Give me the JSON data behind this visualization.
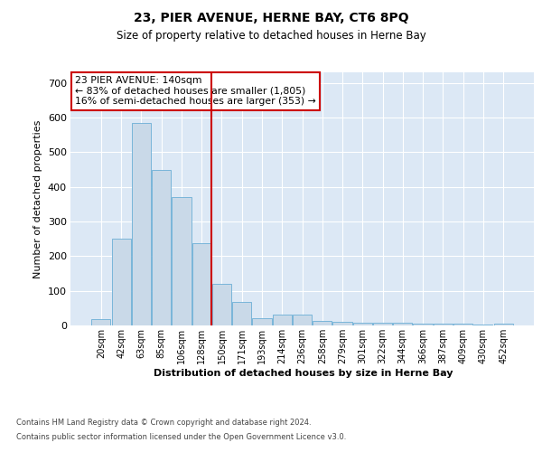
{
  "title": "23, PIER AVENUE, HERNE BAY, CT6 8PQ",
  "subtitle": "Size of property relative to detached houses in Herne Bay",
  "xlabel": "Distribution of detached houses by size in Herne Bay",
  "ylabel": "Number of detached properties",
  "footer_line1": "Contains HM Land Registry data © Crown copyright and database right 2024.",
  "footer_line2": "Contains public sector information licensed under the Open Government Licence v3.0.",
  "annotation_line1": "23 PIER AVENUE: 140sqm",
  "annotation_line2": "← 83% of detached houses are smaller (1,805)",
  "annotation_line3": "16% of semi-detached houses are larger (353) →",
  "bar_color": "#c9d9e8",
  "bar_edge_color": "#6baed6",
  "vline_color": "#cc0000",
  "annotation_box_edge_color": "#cc0000",
  "background_color": "#ffffff",
  "plot_bg_color": "#dce8f5",
  "grid_color": "#ffffff",
  "categories": [
    "20sqm",
    "42sqm",
    "63sqm",
    "85sqm",
    "106sqm",
    "128sqm",
    "150sqm",
    "171sqm",
    "193sqm",
    "214sqm",
    "236sqm",
    "258sqm",
    "279sqm",
    "301sqm",
    "322sqm",
    "344sqm",
    "366sqm",
    "387sqm",
    "409sqm",
    "430sqm",
    "452sqm"
  ],
  "values": [
    18,
    250,
    585,
    448,
    370,
    238,
    120,
    68,
    22,
    30,
    30,
    14,
    11,
    9,
    9,
    9,
    6,
    5,
    4,
    2,
    5
  ],
  "vline_index": 6,
  "ylim": [
    0,
    730
  ],
  "yticks": [
    0,
    100,
    200,
    300,
    400,
    500,
    600,
    700
  ]
}
